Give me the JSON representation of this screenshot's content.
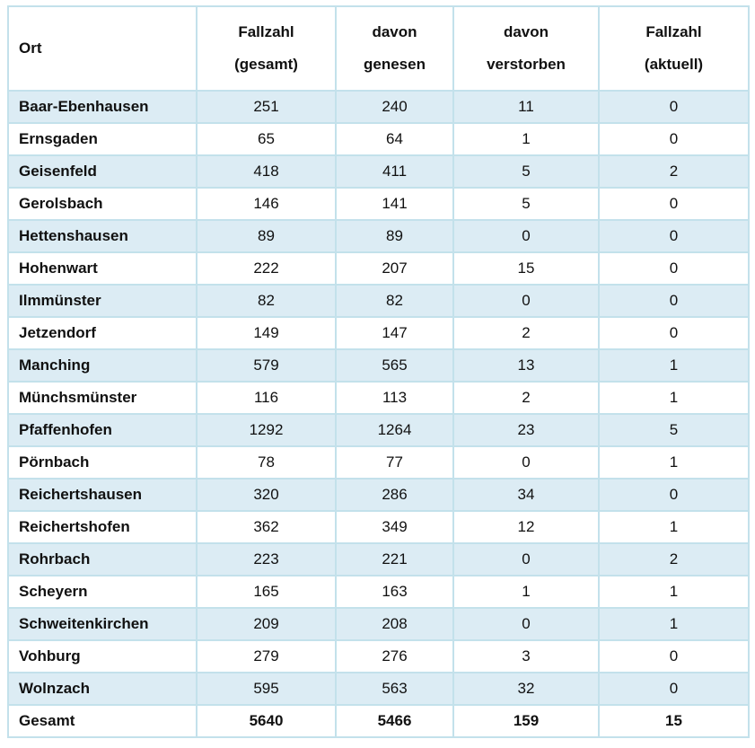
{
  "table": {
    "columns": [
      {
        "key": "ort",
        "line1": "Ort",
        "line2": ""
      },
      {
        "key": "gesamt",
        "line1": "Fallzahl",
        "line2": "(gesamt)"
      },
      {
        "key": "genesen",
        "line1": "davon",
        "line2": "genesen"
      },
      {
        "key": "verstorben",
        "line1": "davon",
        "line2": "verstorben"
      },
      {
        "key": "aktuell",
        "line1": "Fallzahl",
        "line2": "(aktuell)"
      }
    ],
    "rows": [
      {
        "ort": "Baar-Ebenhausen",
        "gesamt": "251",
        "genesen": "240",
        "verstorben": "11",
        "aktuell": "0"
      },
      {
        "ort": "Ernsgaden",
        "gesamt": "65",
        "genesen": "64",
        "verstorben": "1",
        "aktuell": "0"
      },
      {
        "ort": "Geisenfeld",
        "gesamt": "418",
        "genesen": "411",
        "verstorben": "5",
        "aktuell": "2"
      },
      {
        "ort": "Gerolsbach",
        "gesamt": "146",
        "genesen": "141",
        "verstorben": "5",
        "aktuell": "0"
      },
      {
        "ort": "Hettenshausen",
        "gesamt": "89",
        "genesen": "89",
        "verstorben": "0",
        "aktuell": "0"
      },
      {
        "ort": "Hohenwart",
        "gesamt": "222",
        "genesen": "207",
        "verstorben": "15",
        "aktuell": "0"
      },
      {
        "ort": "Ilmmünster",
        "gesamt": "82",
        "genesen": "82",
        "verstorben": "0",
        "aktuell": "0"
      },
      {
        "ort": "Jetzendorf",
        "gesamt": "149",
        "genesen": "147",
        "verstorben": "2",
        "aktuell": "0"
      },
      {
        "ort": "Manching",
        "gesamt": "579",
        "genesen": "565",
        "verstorben": "13",
        "aktuell": "1"
      },
      {
        "ort": "Münchsmünster",
        "gesamt": "116",
        "genesen": "113",
        "verstorben": "2",
        "aktuell": "1"
      },
      {
        "ort": "Pfaffenhofen",
        "gesamt": "1292",
        "genesen": "1264",
        "verstorben": "23",
        "aktuell": "5"
      },
      {
        "ort": "Pörnbach",
        "gesamt": "78",
        "genesen": "77",
        "verstorben": "0",
        "aktuell": "1"
      },
      {
        "ort": "Reichertshausen",
        "gesamt": "320",
        "genesen": "286",
        "verstorben": "34",
        "aktuell": "0"
      },
      {
        "ort": "Reichertshofen",
        "gesamt": "362",
        "genesen": "349",
        "verstorben": "12",
        "aktuell": "1"
      },
      {
        "ort": "Rohrbach",
        "gesamt": "223",
        "genesen": "221",
        "verstorben": "0",
        "aktuell": "2"
      },
      {
        "ort": "Scheyern",
        "gesamt": "165",
        "genesen": "163",
        "verstorben": "1",
        "aktuell": "1"
      },
      {
        "ort": "Schweitenkirchen",
        "gesamt": "209",
        "genesen": "208",
        "verstorben": "0",
        "aktuell": "1"
      },
      {
        "ort": "Vohburg",
        "gesamt": "279",
        "genesen": "276",
        "verstorben": "3",
        "aktuell": "0"
      },
      {
        "ort": "Wolnzach",
        "gesamt": "595",
        "genesen": "563",
        "verstorben": "32",
        "aktuell": "0"
      }
    ],
    "total_row": {
      "ort": "Gesamt",
      "gesamt": "5640",
      "genesen": "5466",
      "verstorben": "159",
      "aktuell": "15"
    }
  },
  "colors": {
    "stripe": "#dcecf4",
    "border": "#c3e1eb",
    "text": "#111111",
    "row_white": "#ffffff"
  }
}
